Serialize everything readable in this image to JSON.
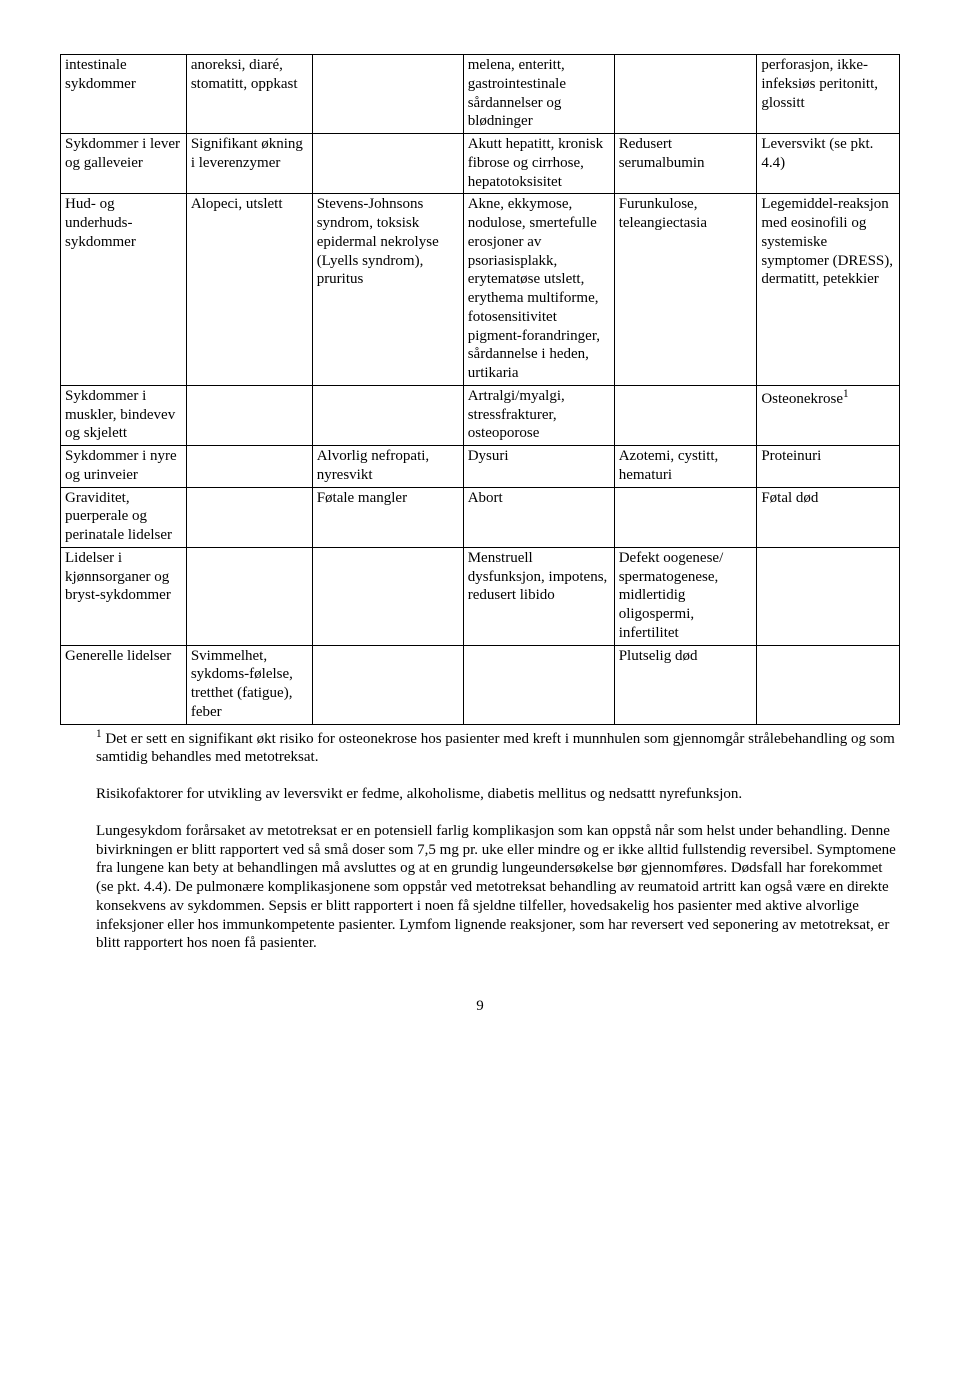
{
  "table": {
    "rows": [
      {
        "c1": "intestinale sykdommer",
        "c2": "anoreksi, diaré, stomatitt, oppkast",
        "c3": "",
        "c4": "melena, enteritt, gastrointestinale sårdannelser og blødninger",
        "c5": "",
        "c6": "perforasjon, ikke-infeksiøs peritonitt, glossitt"
      },
      {
        "c1": "Sykdommer i lever og galleveier",
        "c2": "Signifikant økning i leverenzymer",
        "c3": "",
        "c4": "Akutt hepatitt, kronisk fibrose og cirrhose, hepatotoksisitet",
        "c5": "Redusert serumalbumin",
        "c6": "Leversvikt (se pkt. 4.4)"
      },
      {
        "c1": "Hud- og underhuds-sykdommer",
        "c2": "Alopeci, utslett",
        "c3": "Stevens-Johnsons syndrom, toksisk epidermal nekrolyse (Lyells syndrom), pruritus",
        "c4": "Akne, ekkymose, nodulose, smertefulle erosjoner av psoriasisplakk, erytematøse utslett, erythema multiforme, fotosensitivitet pigment-forandringer, sårdannelse i heden, urtikaria",
        "c5": "Furunkulose, teleangiectasia",
        "c6": "Legemiddel-reaksjon med eosinofili og systemiske symptomer (DRESS), dermatitt, petekkier"
      },
      {
        "c1": "Sykdommer i muskler, bindevev og skjelett",
        "c2": "",
        "c3": "",
        "c4": "Artralgi/myalgi, stressfrakturer, osteoporose",
        "c5": "",
        "c6_pre": "Osteonekrose",
        "c6_sup": "1"
      },
      {
        "c1": "Sykdommer i nyre og urinveier",
        "c2": "",
        "c3": "Alvorlig nefropati, nyresvikt",
        "c4": "Dysuri",
        "c5": "Azotemi, cystitt, hematuri",
        "c6": "Proteinuri"
      },
      {
        "c1": "Graviditet, puerperale og perinatale lidelser",
        "c2": "",
        "c3": "Føtale mangler",
        "c4": "Abort",
        "c5": "",
        "c6": "Føtal død"
      },
      {
        "c1": "Lidelser i kjønnsorganer og bryst-sykdommer",
        "c2": "",
        "c3": "",
        "c4": "Menstruell dysfunksjon, impotens, redusert libido",
        "c5": "Defekt oogenese/ spermatogenese, midlertidig oligospermi, infertilitet",
        "c6": ""
      },
      {
        "c1": "Generelle lidelser",
        "c2": "Svimmelhet, sykdoms-følelse, tretthet (fatigue), feber",
        "c3": "",
        "c4": "",
        "c5": "Plutselig død",
        "c6": ""
      }
    ]
  },
  "footnote_sup": "1",
  "footnote_text": " Det er sett en signifikant økt risiko for osteonekrose hos pasienter med kreft i munnhulen som gjennomgår strålebehandling og som samtidig behandles med metotreksat.",
  "para1": "Risikofaktorer for utvikling av leversvikt er fedme, alkoholisme, diabetis mellitus og nedsattt nyrefunksjon.",
  "para2": "Lungesykdom forårsaket av metotreksat er en potensiell farlig komplikasjon som kan oppstå når som helst under behandling. Denne bivirkningen er blitt rapportert ved så små doser som 7,5 mg pr. uke eller mindre og er ikke alltid fullstendig reversibel. Symptomene fra lungene kan bety at behandlingen må avsluttes og at en grundig lungeundersøkelse bør gjennomføres. Dødsfall har forekommet (se pkt. 4.4). De pulmonære komplikasjonene som oppstår ved metotreksat behandling av reumatoid artritt kan også være en direkte konsekvens av sykdommen. Sepsis er blitt rapportert i noen få sjeldne tilfeller, hovedsakelig hos pasienter med aktive alvorlige infeksjoner eller hos immunkompetente pasienter. Lymfom lignende reaksjoner, som har reversert ved seponering av metotreksat, er blitt rapportert hos noen få pasienter.",
  "page_number": "9"
}
